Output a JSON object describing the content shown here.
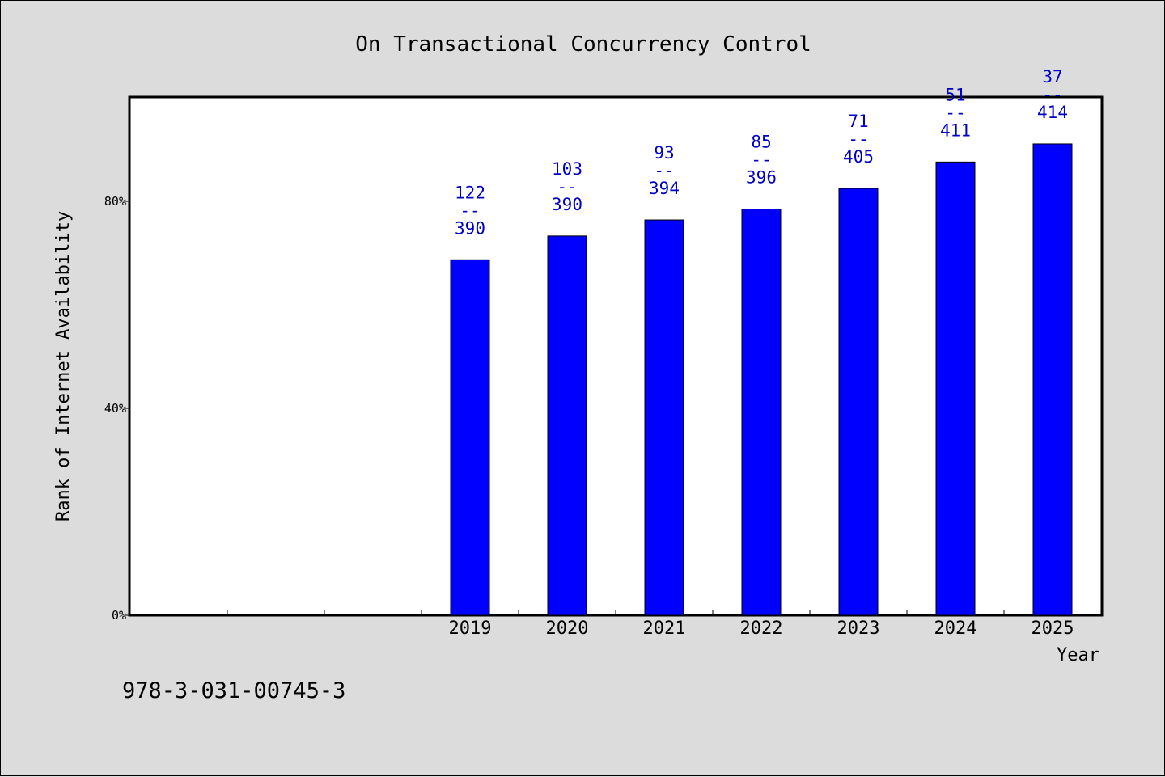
{
  "chart_data": {
    "type": "bar",
    "title": "On Transactional Concurrency Control",
    "xlabel": "Year",
    "ylabel": "Rank of Internet Availability",
    "footer_text": "978-3-031-00745-3",
    "categories": [
      "",
      "",
      "",
      "2019",
      "2020",
      "2021",
      "2022",
      "2023",
      "2024",
      "2025"
    ],
    "values": [
      null,
      null,
      null,
      68.7,
      73.3,
      76.4,
      78.5,
      82.5,
      87.6,
      91.1
    ],
    "data_labels": [
      null,
      null,
      null,
      {
        "top": "122",
        "sep": "--",
        "bottom": "390"
      },
      {
        "top": "103",
        "sep": "--",
        "bottom": "390"
      },
      {
        "top": "93",
        "sep": "--",
        "bottom": "394"
      },
      {
        "top": "85",
        "sep": "--",
        "bottom": "396"
      },
      {
        "top": "71",
        "sep": "--",
        "bottom": "405"
      },
      {
        "top": "51",
        "sep": "--",
        "bottom": "411"
      },
      {
        "top": "37",
        "sep": "--",
        "bottom": "414"
      }
    ],
    "y_ticks": [
      {
        "value": 0,
        "label": "0%"
      },
      {
        "value": 40,
        "label": "40%"
      },
      {
        "value": 80,
        "label": "80%"
      }
    ],
    "ylim": [
      0,
      100
    ],
    "grid": false,
    "colors": {
      "bar": "#0000ff",
      "label": "#0000c8",
      "plot_bg": "#ffffff",
      "page_bg": "#dcdcdc"
    }
  }
}
